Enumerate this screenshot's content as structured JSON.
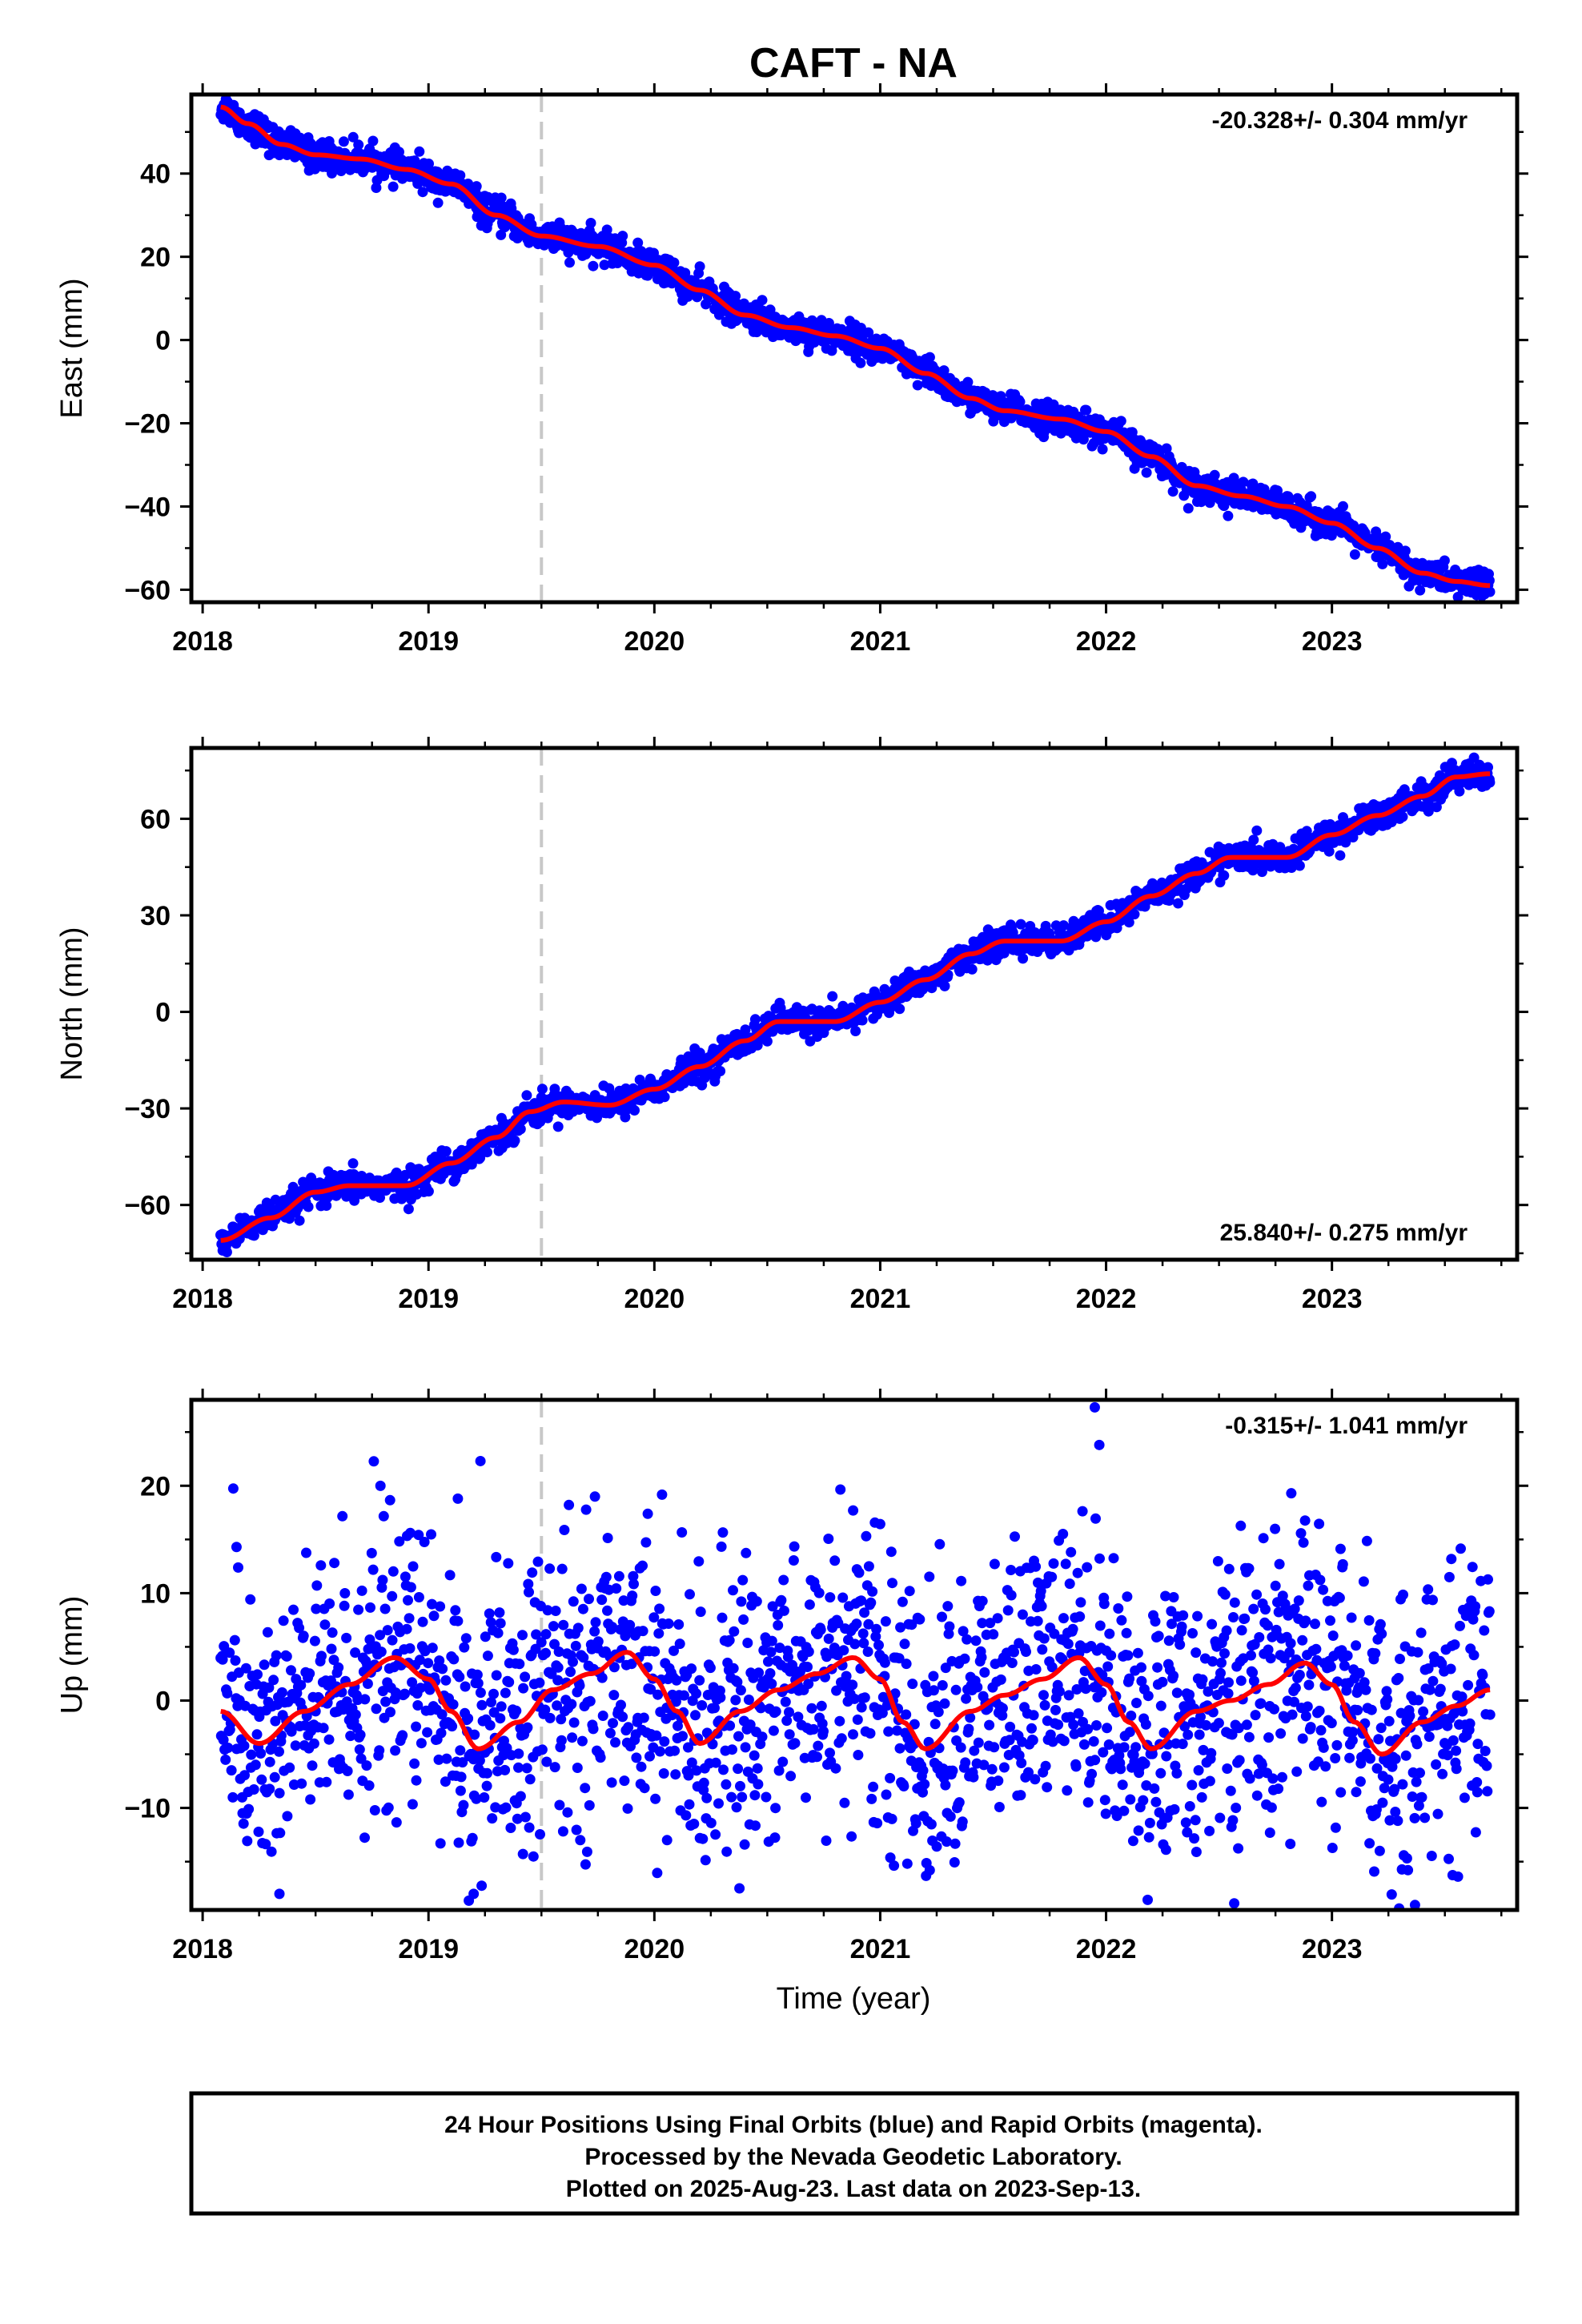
{
  "title": "CAFT - NA",
  "xlabel": "Time (year)",
  "colors": {
    "data": "#0000ff",
    "fit": "#ff0000",
    "marker": "#c8c8c8",
    "frame": "#000000"
  },
  "chart_data": [
    {
      "type": "scatter",
      "name": "east",
      "ylabel": "East (mm)",
      "rate_label": "-20.328+/- 0.304 mm/yr",
      "rate_position": "top-right",
      "xlim": [
        2017.95,
        2023.82
      ],
      "ylim": [
        -63,
        59
      ],
      "xticks": [
        2018,
        2019,
        2020,
        2021,
        2022,
        2023
      ],
      "xtick_labels": [
        "2018",
        "2019",
        "2020",
        "2021",
        "2022",
        "2023"
      ],
      "yticks": [
        -60,
        -40,
        -20,
        0,
        20,
        40
      ],
      "ytick_labels": [
        "−60",
        "−40",
        "−20",
        "0",
        "20",
        "40"
      ],
      "marker_x": 2019.5,
      "scatter_amp": 1.8,
      "fit_points": [
        [
          2018.08,
          56
        ],
        [
          2018.2,
          52
        ],
        [
          2018.35,
          47
        ],
        [
          2018.5,
          44.5
        ],
        [
          2018.7,
          43.5
        ],
        [
          2018.9,
          41
        ],
        [
          2019.1,
          37.5
        ],
        [
          2019.3,
          30
        ],
        [
          2019.5,
          25
        ],
        [
          2019.75,
          22.5
        ],
        [
          2020.0,
          18
        ],
        [
          2020.2,
          12
        ],
        [
          2020.4,
          6
        ],
        [
          2020.6,
          3
        ],
        [
          2020.8,
          1
        ],
        [
          2021.0,
          -2
        ],
        [
          2021.2,
          -8
        ],
        [
          2021.4,
          -14
        ],
        [
          2021.55,
          -17
        ],
        [
          2021.8,
          -19
        ],
        [
          2022.0,
          -22
        ],
        [
          2022.2,
          -28
        ],
        [
          2022.4,
          -35
        ],
        [
          2022.6,
          -37.5
        ],
        [
          2022.8,
          -40
        ],
        [
          2023.0,
          -44
        ],
        [
          2023.2,
          -50
        ],
        [
          2023.4,
          -56
        ],
        [
          2023.55,
          -58
        ],
        [
          2023.7,
          -59
        ]
      ]
    },
    {
      "type": "scatter",
      "name": "north",
      "ylabel": "North (mm)",
      "rate_label": "25.840+/- 0.275 mm/yr",
      "rate_position": "bottom-right",
      "xlim": [
        2017.95,
        2023.82
      ],
      "ylim": [
        -77,
        82
      ],
      "xticks": [
        2018,
        2019,
        2020,
        2021,
        2022,
        2023
      ],
      "xtick_labels": [
        "2018",
        "2019",
        "2020",
        "2021",
        "2022",
        "2023"
      ],
      "yticks": [
        -60,
        -30,
        0,
        30,
        60
      ],
      "ytick_labels": [
        "−60",
        "−30",
        "0",
        "30",
        "60"
      ],
      "marker_x": 2019.5,
      "scatter_amp": 2.2,
      "fit_points": [
        [
          2018.08,
          -71
        ],
        [
          2018.3,
          -64
        ],
        [
          2018.5,
          -56
        ],
        [
          2018.65,
          -54
        ],
        [
          2018.9,
          -54
        ],
        [
          2019.1,
          -47
        ],
        [
          2019.3,
          -39
        ],
        [
          2019.45,
          -31
        ],
        [
          2019.6,
          -28
        ],
        [
          2019.8,
          -29
        ],
        [
          2020.0,
          -24
        ],
        [
          2020.2,
          -17
        ],
        [
          2020.4,
          -9
        ],
        [
          2020.55,
          -3
        ],
        [
          2020.8,
          -3
        ],
        [
          2021.0,
          3
        ],
        [
          2021.2,
          10
        ],
        [
          2021.4,
          18
        ],
        [
          2021.55,
          22
        ],
        [
          2021.8,
          22
        ],
        [
          2022.0,
          28
        ],
        [
          2022.2,
          36
        ],
        [
          2022.4,
          43
        ],
        [
          2022.55,
          48
        ],
        [
          2022.8,
          48
        ],
        [
          2023.0,
          55
        ],
        [
          2023.2,
          61
        ],
        [
          2023.4,
          67
        ],
        [
          2023.55,
          73
        ],
        [
          2023.7,
          74
        ]
      ]
    },
    {
      "type": "scatter",
      "name": "up",
      "ylabel": "Up (mm)",
      "rate_label": "-0.315+/- 1.041 mm/yr",
      "rate_position": "top-right",
      "xlim": [
        2017.95,
        2023.82
      ],
      "ylim": [
        -19.5,
        28
      ],
      "xticks": [
        2018,
        2019,
        2020,
        2021,
        2022,
        2023
      ],
      "xtick_labels": [
        "2018",
        "2019",
        "2020",
        "2021",
        "2022",
        "2023"
      ],
      "yticks": [
        -10,
        0,
        10,
        20
      ],
      "ytick_labels": [
        "−10",
        "0",
        "10",
        "20"
      ],
      "marker_x": 2019.5,
      "scatter_amp": 6.5,
      "fit_points": [
        [
          2018.08,
          -1
        ],
        [
          2018.25,
          -4
        ],
        [
          2018.45,
          -1
        ],
        [
          2018.65,
          1.5
        ],
        [
          2018.85,
          4
        ],
        [
          2019.0,
          2
        ],
        [
          2019.1,
          -1
        ],
        [
          2019.22,
          -4.5
        ],
        [
          2019.4,
          -2
        ],
        [
          2019.55,
          1
        ],
        [
          2019.72,
          2.5
        ],
        [
          2019.88,
          4.5
        ],
        [
          2020.0,
          2
        ],
        [
          2020.1,
          -1
        ],
        [
          2020.2,
          -4
        ],
        [
          2020.38,
          -1
        ],
        [
          2020.55,
          1
        ],
        [
          2020.72,
          2.5
        ],
        [
          2020.88,
          4
        ],
        [
          2021.0,
          2
        ],
        [
          2021.1,
          -2
        ],
        [
          2021.2,
          -4.5
        ],
        [
          2021.4,
          -1
        ],
        [
          2021.55,
          0.5
        ],
        [
          2021.72,
          2
        ],
        [
          2021.88,
          4
        ],
        [
          2022.0,
          1.5
        ],
        [
          2022.1,
          -2
        ],
        [
          2022.2,
          -4.5
        ],
        [
          2022.4,
          -1
        ],
        [
          2022.55,
          0
        ],
        [
          2022.72,
          1.5
        ],
        [
          2022.88,
          3.5
        ],
        [
          2023.0,
          1.5
        ],
        [
          2023.1,
          -2
        ],
        [
          2023.22,
          -5
        ],
        [
          2023.4,
          -2
        ],
        [
          2023.55,
          -0.5
        ],
        [
          2023.7,
          1
        ]
      ]
    }
  ],
  "footer": {
    "line1": "24 Hour Positions Using Final Orbits (blue) and Rapid Orbits (magenta).",
    "line2": "Processed by the Nevada Geodetic Laboratory.",
    "line3": "Plotted on 2025-Aug-23. Last data on 2023-Sep-13."
  }
}
